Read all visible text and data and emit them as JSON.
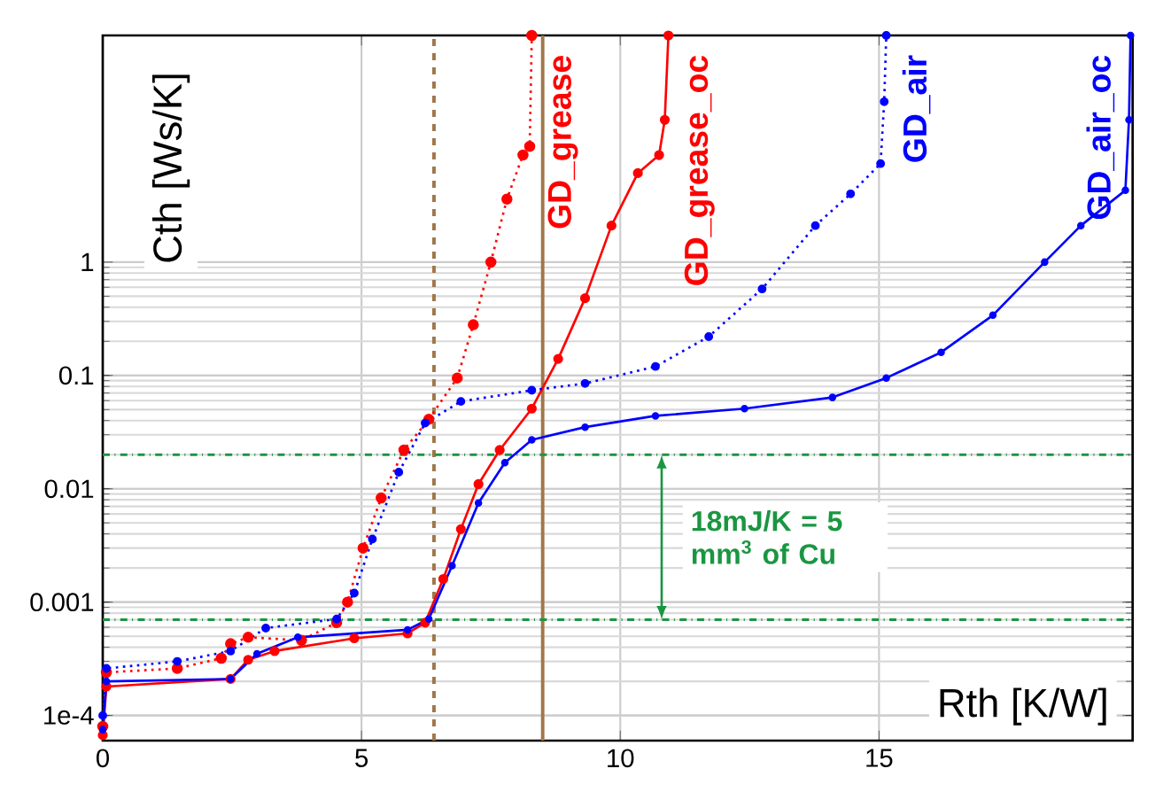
{
  "chart_data": {
    "type": "line",
    "xlabel": "Rth [K/W]",
    "ylabel": "Cth [Ws/K]",
    "log": "y",
    "xlim": [
      0,
      19.9
    ],
    "ylim": [
      6e-05,
      100
    ],
    "xticks": [
      0,
      5,
      10,
      15
    ],
    "yticks": [
      {
        "value": 0.0001,
        "label": "1e-4"
      },
      0.001,
      0.01,
      0.1,
      1
    ],
    "grid": true,
    "marker": "circle",
    "series": [
      {
        "name": "GD_grease",
        "color": "#ff0000",
        "line_style": "dotted",
        "x": [
          0,
          0.07,
          1.44,
          2.29,
          2.47,
          2.81,
          3.84,
          4.52,
          4.73,
          5.03,
          5.38,
          5.82,
          6.3,
          6.85,
          7.16,
          7.5,
          7.81,
          8.12,
          8.25,
          8.29
        ],
        "values": [
          8e-05,
          0.00024,
          0.00026,
          0.00032,
          0.00043,
          0.00049,
          0.00046,
          0.00066,
          0.001,
          0.003,
          0.0083,
          0.022,
          0.041,
          0.095,
          0.28,
          1,
          3.6,
          8.8,
          10.5,
          100
        ]
      },
      {
        "name": "GD_grease_oc",
        "color": "#ff0000",
        "line_style": "solid",
        "x": [
          0,
          0.07,
          2.47,
          2.81,
          3.32,
          4.86,
          5.89,
          6.23,
          6.58,
          6.92,
          7.26,
          7.67,
          8.29,
          8.8,
          9.32,
          9.83,
          10.34,
          10.75,
          10.86,
          10.93
        ],
        "values": [
          6.7e-05,
          0.00018,
          0.00021,
          0.00031,
          0.00037,
          0.00048,
          0.00053,
          0.00066,
          0.0016,
          0.0044,
          0.011,
          0.022,
          0.051,
          0.14,
          0.48,
          2.1,
          6.1,
          8.8,
          18,
          100
        ]
      },
      {
        "name": "GD_air",
        "color": "#0000ff",
        "line_style": "dotted",
        "x": [
          0,
          0.07,
          1.44,
          2.47,
          3.15,
          4.52,
          4.86,
          5.21,
          5.72,
          6.23,
          6.92,
          8.29,
          9.32,
          10.68,
          11.71,
          12.74,
          13.77,
          14.45,
          15.03,
          15.1,
          15.14
        ],
        "values": [
          0.0001,
          0.00026,
          0.0003,
          0.00037,
          0.00059,
          0.00071,
          0.0012,
          0.0036,
          0.014,
          0.038,
          0.059,
          0.074,
          0.085,
          0.12,
          0.22,
          0.58,
          2.1,
          4,
          7.4,
          26,
          100
        ]
      },
      {
        "name": "GD_air_oc",
        "color": "#0000ff",
        "line_style": "solid",
        "x": [
          0,
          0.07,
          2.47,
          2.98,
          3.77,
          5.89,
          6.3,
          6.75,
          7.26,
          7.77,
          8.29,
          9.32,
          10.68,
          12.4,
          14.1,
          15.14,
          16.2,
          17.2,
          18.2,
          18.9,
          19.76,
          19.83,
          19.86
        ],
        "values": [
          7.5e-05,
          0.0002,
          0.00021,
          0.00035,
          0.00049,
          0.00057,
          0.00071,
          0.0021,
          0.0075,
          0.017,
          0.027,
          0.035,
          0.044,
          0.051,
          0.064,
          0.095,
          0.16,
          0.34,
          1,
          2.1,
          4.3,
          18,
          100
        ]
      }
    ],
    "ref_lines": [
      {
        "axis": "x",
        "value": 6.4,
        "color": "#a0774a",
        "line_style": "dashed"
      },
      {
        "axis": "x",
        "value": 8.5,
        "color": "#a0774a",
        "line_style": "solid"
      },
      {
        "axis": "y",
        "value": 0.02,
        "color": "#1a9641",
        "line_style": "dashdot"
      },
      {
        "axis": "y",
        "value": 0.0007,
        "color": "#1a9641",
        "line_style": "dashdot"
      }
    ],
    "annotations": [
      "18mJ/K = 5 mm$^{3}$ of Cu"
    ]
  }
}
